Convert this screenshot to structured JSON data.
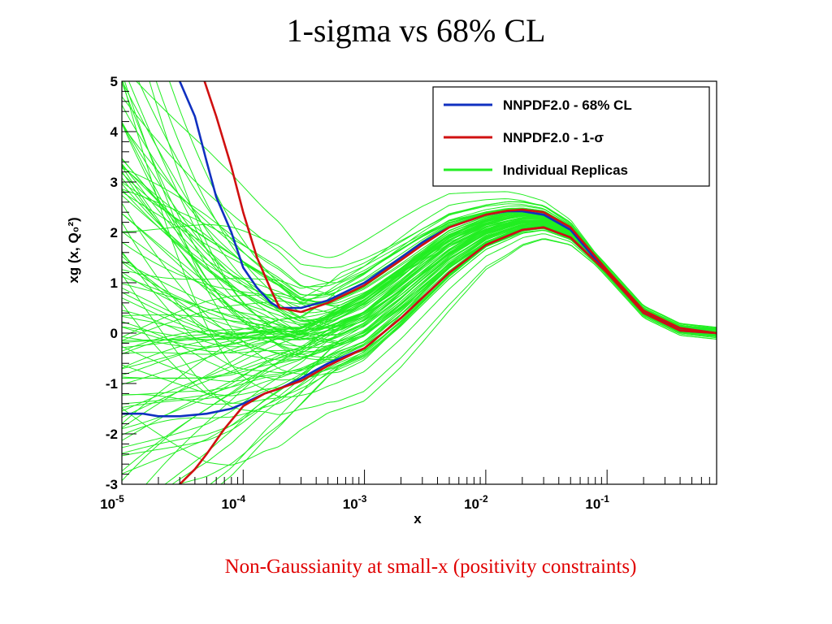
{
  "slide": {
    "title": "1-sigma vs 68% CL",
    "caption": "Non-Gaussianity at small-x (positivity constraints)",
    "caption_color": "#e00000"
  },
  "chart_data": {
    "type": "line",
    "xscale": "log",
    "xlim": [
      1e-05,
      0.8
    ],
    "ylim": [
      -3,
      5
    ],
    "xlabel": "x",
    "ylabel": "xg (x, Q₀²)",
    "y_ticks": [
      "5",
      "4",
      "3",
      "2",
      "1",
      "0",
      "-1",
      "-2",
      "-3"
    ],
    "x_tick_labels": [
      {
        "base": "10",
        "exp": "-5"
      },
      {
        "base": "10",
        "exp": "-4"
      },
      {
        "base": "10",
        "exp": "-3"
      },
      {
        "base": "10",
        "exp": "-2"
      },
      {
        "base": "10",
        "exp": "-1"
      }
    ],
    "legend": {
      "placement": "top-right",
      "entries": [
        {
          "label": "NNPDF2.0 - 68% CL",
          "color": "#1030c0"
        },
        {
          "label": "NNPDF2.0 - 1-σ",
          "color": "#d01010"
        },
        {
          "label": "Individual Replicas",
          "color": "#22ee22"
        }
      ]
    },
    "colors": {
      "cl68": "#1030c0",
      "sigma": "#d01010",
      "replicas": "#22ee22"
    },
    "series": [
      {
        "name": "NNPDF2.0 - 68% CL",
        "band": "upper",
        "x": [
          3e-05,
          4e-05,
          5e-05,
          6e-05,
          8e-05,
          0.0001,
          0.00013,
          0.00017,
          0.0002,
          0.0003,
          0.0005,
          0.001,
          0.002,
          0.003,
          0.005,
          0.01,
          0.015,
          0.02,
          0.03,
          0.05,
          0.1,
          0.2,
          0.4,
          0.8
        ],
        "y": [
          5,
          4.3,
          3.4,
          2.7,
          2.0,
          1.3,
          0.9,
          0.6,
          0.5,
          0.5,
          0.65,
          1.0,
          1.5,
          1.8,
          2.1,
          2.35,
          2.42,
          2.42,
          2.35,
          2.05,
          1.2,
          0.4,
          0.1,
          0.0
        ]
      },
      {
        "name": "NNPDF2.0 - 68% CL",
        "band": "lower",
        "x": [
          1e-05,
          1.5e-05,
          2e-05,
          3e-05,
          5e-05,
          8e-05,
          0.0001,
          0.00015,
          0.0002,
          0.0003,
          0.0005,
          0.001,
          0.002,
          0.003,
          0.005,
          0.01,
          0.02,
          0.03,
          0.05,
          0.1,
          0.2,
          0.4,
          0.8
        ],
        "y": [
          -1.6,
          -1.6,
          -1.65,
          -1.65,
          -1.6,
          -1.5,
          -1.4,
          -1.2,
          -1.1,
          -0.9,
          -0.6,
          -0.3,
          0.3,
          0.7,
          1.2,
          1.75,
          2.05,
          2.1,
          1.9,
          1.2,
          0.4,
          0.05,
          0.0
        ]
      },
      {
        "name": "NNPDF2.0 - 1-σ",
        "band": "upper",
        "x": [
          4.8e-05,
          6e-05,
          8e-05,
          0.0001,
          0.00013,
          0.00017,
          0.0002,
          0.0003,
          0.0005,
          0.001,
          0.002,
          0.003,
          0.005,
          0.01,
          0.015,
          0.02,
          0.03,
          0.05,
          0.1,
          0.2,
          0.4,
          0.8
        ],
        "y": [
          5,
          4.3,
          3.3,
          2.4,
          1.5,
          0.85,
          0.5,
          0.42,
          0.6,
          0.95,
          1.45,
          1.75,
          2.1,
          2.35,
          2.43,
          2.45,
          2.4,
          2.1,
          1.25,
          0.45,
          0.1,
          0.0
        ]
      },
      {
        "name": "NNPDF2.0 - 1-σ",
        "band": "lower",
        "x": [
          3e-05,
          4e-05,
          5e-05,
          7e-05,
          0.0001,
          0.00015,
          0.0002,
          0.0003,
          0.0005,
          0.001,
          0.002,
          0.003,
          0.005,
          0.01,
          0.02,
          0.03,
          0.05,
          0.1,
          0.2,
          0.4,
          0.8
        ],
        "y": [
          -3,
          -2.7,
          -2.4,
          -1.9,
          -1.45,
          -1.2,
          -1.1,
          -0.95,
          -0.65,
          -0.3,
          0.3,
          0.7,
          1.2,
          1.75,
          2.05,
          2.1,
          1.9,
          1.2,
          0.4,
          0.05,
          0.0
        ]
      }
    ],
    "replica_count": 100
  }
}
